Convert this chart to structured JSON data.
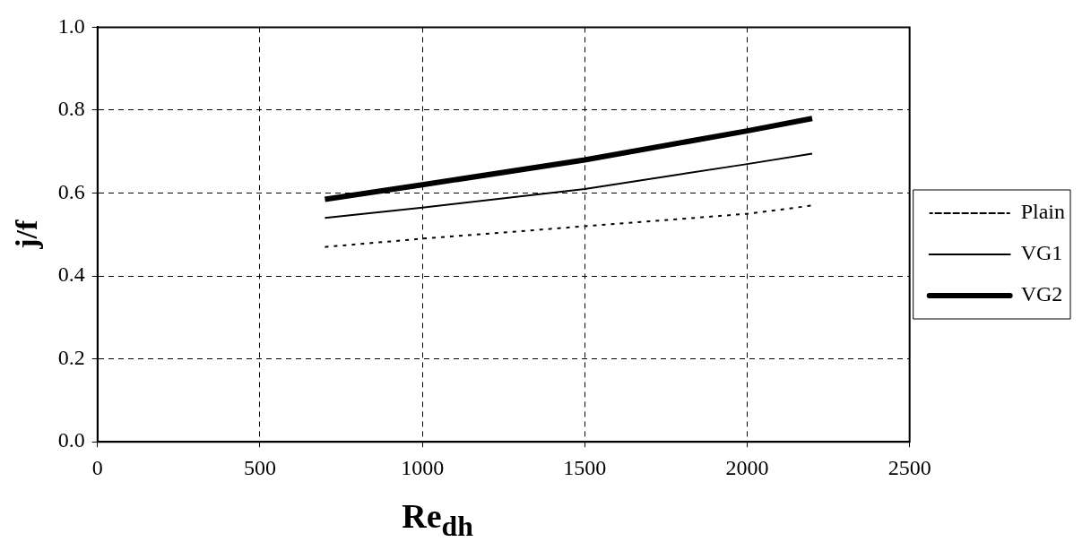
{
  "chart_data": {
    "type": "line",
    "xlabel": "Re$_{dh}$",
    "ylabel": "j/f",
    "x": [
      700,
      1000,
      1500,
      2000,
      2200
    ],
    "series": [
      {
        "name": "Plain",
        "color": "#000000",
        "line_style": "dotted",
        "values": [
          0.47,
          0.49,
          0.52,
          0.55,
          0.57
        ]
      },
      {
        "name": "VG1",
        "color": "#000000",
        "line_style": "solid",
        "values": [
          0.54,
          0.565,
          0.61,
          0.67,
          0.695
        ]
      },
      {
        "name": "VG2",
        "color": "#000000",
        "line_style": "solid",
        "values": [
          0.585,
          0.62,
          0.68,
          0.75,
          0.78
        ]
      }
    ],
    "xlim": [
      0,
      2500
    ],
    "xticks": [
      0,
      500,
      1000,
      1500,
      2000,
      2500
    ],
    "ylim": [
      0,
      1.0
    ],
    "yticks": [
      {
        "value": 0,
        "label": "0.0"
      },
      {
        "value": 0.2,
        "label": "0.2"
      },
      {
        "value": 0.4,
        "label": "0.4"
      },
      {
        "value": 0.6,
        "label": "0.6"
      },
      {
        "value": 0.8,
        "label": "0.8"
      },
      {
        "value": 1.0,
        "label": "1.0"
      }
    ],
    "grid": true,
    "legend": "right",
    "marker": "none"
  }
}
